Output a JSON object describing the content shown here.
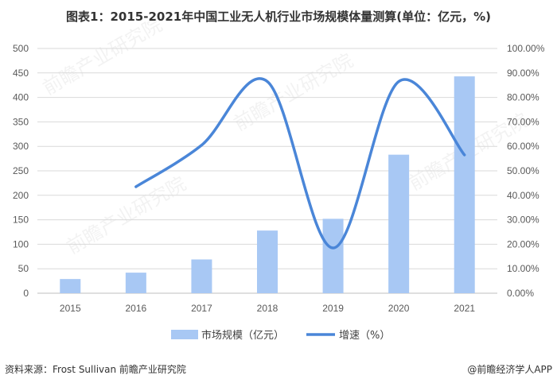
{
  "title": "图表1：2015-2021年中国工业无人机行业市场规模体量测算(单位：亿元，%)",
  "source": "资料来源：Frost Sullivan 前瞻产业研究院",
  "brand": "@前瞻经济学人APP",
  "watermark": "前瞻产业研究院",
  "colors": {
    "bar": "#a8c8f4",
    "line": "#4a86d8",
    "grid": "#d9d9d9",
    "axis_text": "#595959"
  },
  "chart_data": {
    "type": "bar",
    "categories": [
      "2015",
      "2016",
      "2017",
      "2018",
      "2019",
      "2020",
      "2021"
    ],
    "series": [
      {
        "name": "市场规模（亿元）",
        "type": "bar",
        "axis": "left",
        "values": [
          29,
          42,
          69,
          128,
          152,
          283,
          443
        ]
      },
      {
        "name": "增速（%）",
        "type": "line",
        "axis": "right",
        "smooth": true,
        "values": [
          null,
          43.5,
          60.5,
          86.5,
          18.5,
          86.5,
          56.5
        ]
      }
    ],
    "y_left": {
      "ylim": [
        0,
        500
      ],
      "ticks": [
        "0",
        "50",
        "100",
        "150",
        "200",
        "250",
        "300",
        "350",
        "400",
        "450",
        "500"
      ]
    },
    "y_right": {
      "ylim": [
        0,
        100
      ],
      "ticks": [
        "0.00%",
        "10.00%",
        "20.00%",
        "30.00%",
        "40.00%",
        "50.00%",
        "60.00%",
        "70.00%",
        "80.00%",
        "90.00%",
        "100.00%"
      ]
    },
    "grid": true,
    "legend": "bottom"
  }
}
